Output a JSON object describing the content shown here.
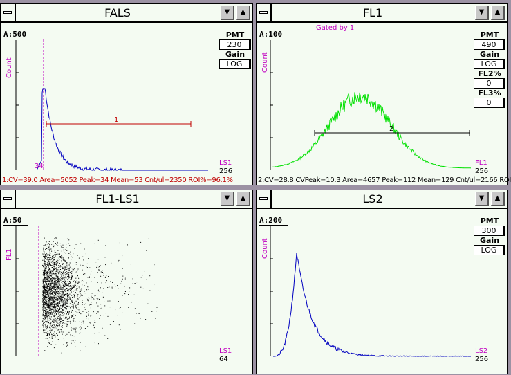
{
  "windows": [
    {
      "id": "fals",
      "title": "FALS",
      "range": "A:500",
      "ylabel": "Count",
      "channel": "LS1",
      "max": "256",
      "marker_value": "34",
      "region_label": "1",
      "stats": "1:CV=39.0 Area=5052 Peak=34 Mean=53 Cnt/ul=2350 ROI%=96.1%",
      "panel": [
        {
          "label": "PMT",
          "value": "230"
        },
        {
          "label": "Gain",
          "value": "LOG"
        }
      ]
    },
    {
      "id": "fl1",
      "title": "FL1",
      "range": "A:100",
      "gated_by": "Gated by 1",
      "ylabel": "Count",
      "channel": "FL1",
      "max": "256",
      "region_label": "2",
      "stats": "2:CV=28.8 CVPeak=10.3 Area=4657 Peak=112 Mean=129 Cnt/ul=2166 ROI",
      "panel": [
        {
          "label": "PMT",
          "value": "490"
        },
        {
          "label": "Gain",
          "value": "LOG"
        },
        {
          "label": "FL2%",
          "value": "0"
        },
        {
          "label": "FL3%",
          "value": "0"
        }
      ]
    },
    {
      "id": "fl1-ls1",
      "title": "FL1-LS1",
      "range": "A:50",
      "ylabel": "FL1",
      "channel": "LS1",
      "max": "64"
    },
    {
      "id": "ls2",
      "title": "LS2",
      "range": "A:200",
      "ylabel": "Count",
      "channel": "LS2",
      "max": "256",
      "panel": [
        {
          "label": "PMT",
          "value": "300"
        },
        {
          "label": "Gain",
          "value": "LOG"
        }
      ]
    }
  ],
  "icons": {
    "system_menu": "system-menu-icon",
    "minimize": "minimize-arrow-icon",
    "maximize": "maximize-arrow-icon"
  },
  "colors": {
    "background": "#9c92a4",
    "window": "#f4fbf2",
    "marker": "#c000c0",
    "fals_trace": "#0000c0",
    "fl1_trace": "#00e000",
    "ls2_trace": "#0000c0",
    "fals_region": "#c00000",
    "fl1_region": "#000000",
    "stats_fals": "#c00000"
  }
}
